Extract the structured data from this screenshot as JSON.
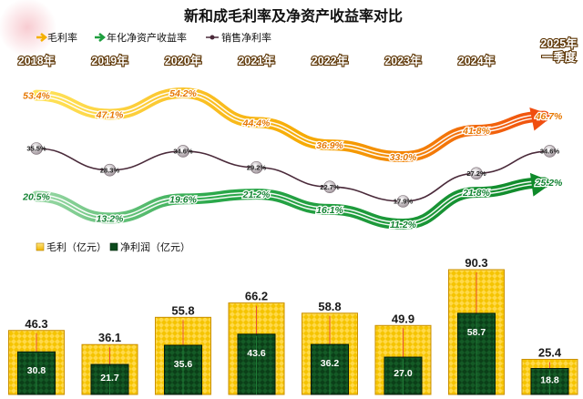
{
  "chart_data": {
    "title": "新和成毛利率及净资产收益率对比",
    "categories": [
      "2018年",
      "2019年",
      "2020年",
      "2021年",
      "2022年",
      "2023年",
      "2024年",
      "2025年\n一季度"
    ],
    "lines": {
      "type": "line",
      "series": [
        {
          "name": "毛利率",
          "values": [
            53.4,
            47.1,
            54.2,
            44.4,
            36.9,
            33.0,
            41.8,
            46.7
          ],
          "labels": [
            "53.4%",
            "47.1%",
            "54.2%",
            "44.4%",
            "36.9%",
            "33.0%",
            "41.8%",
            "46.7%"
          ],
          "color": "#f5a000"
        },
        {
          "name": "年化净资产收益率",
          "values": [
            20.5,
            13.2,
            19.6,
            21.2,
            16.1,
            11.2,
            21.8,
            25.2
          ],
          "labels": [
            "20.5%",
            "13.2%",
            "19.6%",
            "21.2%",
            "16.1%",
            "11.2%",
            "21.8%",
            "25.2%"
          ],
          "color": "#1e9e3e"
        },
        {
          "name": "销售净利率",
          "values": [
            35.5,
            28.3,
            34.6,
            29.2,
            22.7,
            17.9,
            27.2,
            34.6
          ],
          "labels": [
            "35.5%",
            "28.3%",
            "34.6%",
            "29.2%",
            "22.7%",
            "17.9%",
            "27.2%",
            "34.6%"
          ],
          "color": "#4a2a3a"
        }
      ]
    },
    "bars": {
      "type": "bar",
      "series": [
        {
          "name": "毛利（亿元）",
          "values": [
            46.3,
            36.1,
            55.8,
            66.2,
            58.8,
            49.9,
            90.3,
            25.4
          ],
          "labels": [
            "46.3",
            "36.1",
            "55.8",
            "66.2",
            "58.8",
            "49.9",
            "90.3",
            "25.4"
          ],
          "color": "#f2c200"
        },
        {
          "name": "净利润（亿元）",
          "values": [
            30.8,
            21.7,
            35.6,
            43.6,
            36.2,
            27.0,
            58.7,
            18.8
          ],
          "labels": [
            "30.8",
            "21.7",
            "35.6",
            "43.6",
            "36.2",
            "27.0",
            "58.7",
            "18.8"
          ],
          "color": "#0c4a1c"
        }
      ]
    }
  }
}
